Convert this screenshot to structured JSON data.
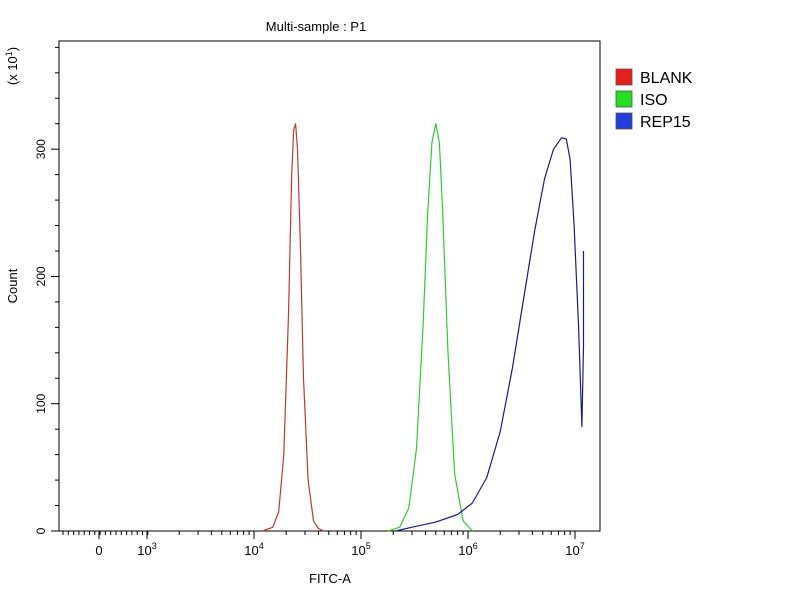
{
  "chart_data": {
    "type": "line",
    "title": "Multi-sample : P1",
    "xlabel": "FITC-A",
    "ylabel": "Count",
    "y_multiplier_label": {
      "base": "(x 10",
      "exp": "1",
      "close": ")"
    },
    "x_scale": "log (with linear region near 0)",
    "x_ticks": [
      {
        "value": 0,
        "base": "0",
        "exp": ""
      },
      {
        "value": 1000,
        "base": "10",
        "exp": "3"
      },
      {
        "value": 10000,
        "base": "10",
        "exp": "4"
      },
      {
        "value": 100000,
        "base": "10",
        "exp": "5"
      },
      {
        "value": 1000000,
        "base": "10",
        "exp": "6"
      },
      {
        "value": 10000000,
        "base": "10",
        "exp": "7"
      }
    ],
    "y_ticks": [
      "0",
      "100",
      "200",
      "300"
    ],
    "ylim": [
      0,
      385
    ],
    "grid": false,
    "legend_position": "right",
    "legend": [
      "BLANK",
      "ISO",
      "REP15"
    ],
    "series": [
      {
        "name": "BLANK",
        "color": "#c0392b",
        "legend_color": "#e8201a",
        "x": [
          12000,
          15000,
          17000,
          19000,
          21000,
          22500,
          23500,
          24500,
          25500,
          27000,
          29000,
          32000,
          36000,
          40000,
          45000
        ],
        "y": [
          0,
          3,
          15,
          60,
          170,
          280,
          315,
          320,
          300,
          230,
          120,
          40,
          8,
          2,
          0
        ]
      },
      {
        "name": "ISO",
        "color": "#2ecc2e",
        "legend_color": "#22dd22",
        "x": [
          180000,
          230000,
          280000,
          330000,
          380000,
          420000,
          460000,
          500000,
          540000,
          580000,
          650000,
          750000,
          900000,
          1100000
        ],
        "y": [
          0,
          3,
          18,
          65,
          160,
          250,
          305,
          320,
          305,
          250,
          140,
          45,
          8,
          0
        ]
      },
      {
        "name": "REP15",
        "color": "#1a1a8c",
        "legend_color": "#1f3fd6",
        "x": [
          210000,
          300000,
          500000,
          800000,
          1100000,
          1500000,
          2000000,
          2600000,
          3300000,
          4200000,
          5200000,
          6300000,
          7500000,
          8300000,
          9000000,
          9800000,
          10800000,
          11600000,
          12000000,
          12000000
        ],
        "y": [
          0,
          3,
          7,
          13,
          22,
          42,
          78,
          128,
          182,
          236,
          277,
          300,
          309,
          308,
          292,
          240,
          160,
          82,
          145,
          220
        ]
      }
    ]
  }
}
